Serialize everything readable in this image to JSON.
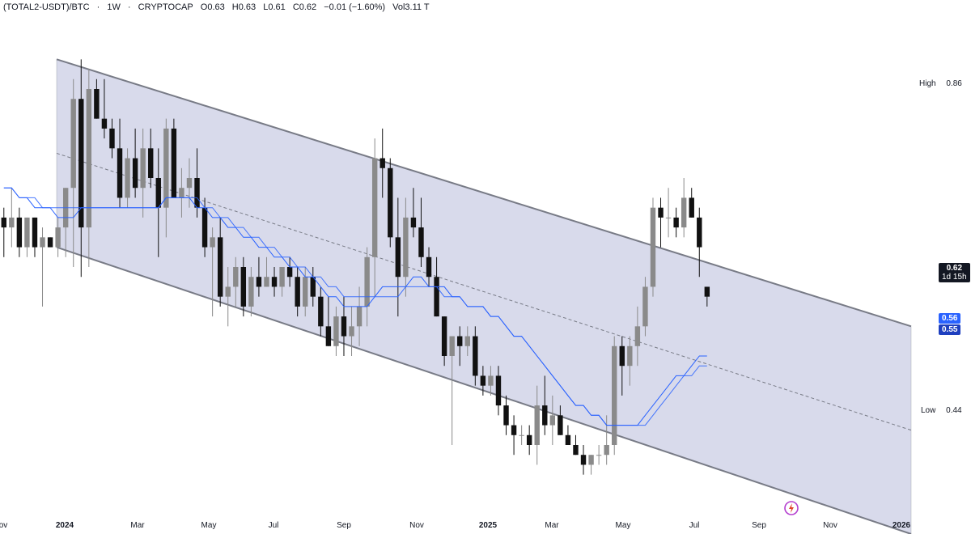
{
  "header": {
    "symbol": "(TOTAL2-USDT)/BTC",
    "sep1": "·",
    "interval": "1W",
    "sep2": "·",
    "source": "CRYPTOCAP",
    "open": "O0.63",
    "high": "H0.63",
    "low": "L0.61",
    "close": "C0.62",
    "change": "−0.01 (−1.60%)",
    "volume": "Vol3.11 T"
  },
  "price_labels": {
    "high_label": "High",
    "high_value": "0.86",
    "low_label": "Low",
    "low_value": "0.44",
    "last_price": "0.62",
    "countdown": "1d 15h",
    "ma_fast": "0.56",
    "ma_slow": "0.55"
  },
  "colors": {
    "channel_fill": "#d1d4e8",
    "channel_line": "#787b86",
    "up_candle": "#8a8a8a",
    "down_candle": "#111111",
    "ma": "#2962ff",
    "ma_badge": "#2962ff",
    "last_badge": "#131722"
  },
  "icons": {
    "logo": "lightning-logo-icon"
  },
  "chart_data": {
    "type": "candlestick",
    "title": "(TOTAL2-USDT)/BTC · 1W · CRYPTOCAP",
    "x_ticks": [
      "2024",
      "Mar",
      "May",
      "Jul",
      "Sep",
      "Nov",
      "2025",
      "Mar",
      "May",
      "Jul",
      "Sep",
      "Nov",
      "2026"
    ],
    "y_range": [
      0.38,
      0.92
    ],
    "y_scale": "linear",
    "grid": false,
    "high": 0.86,
    "low": 0.44,
    "last": 0.62,
    "candles": [
      [
        0.7,
        0.71,
        0.66,
        0.69
      ],
      [
        0.69,
        0.73,
        0.67,
        0.7
      ],
      [
        0.7,
        0.71,
        0.66,
        0.67
      ],
      [
        0.67,
        0.7,
        0.66,
        0.7
      ],
      [
        0.7,
        0.7,
        0.66,
        0.67
      ],
      [
        0.67,
        0.69,
        0.61,
        0.68
      ],
      [
        0.68,
        0.68,
        0.67,
        0.67
      ],
      [
        0.67,
        0.7,
        0.66,
        0.69
      ],
      [
        0.69,
        0.73,
        0.66,
        0.73
      ],
      [
        0.73,
        0.84,
        0.65,
        0.82
      ],
      [
        0.82,
        0.86,
        0.64,
        0.69
      ],
      [
        0.69,
        0.85,
        0.65,
        0.83
      ],
      [
        0.83,
        0.84,
        0.8,
        0.8
      ],
      [
        0.8,
        0.84,
        0.78,
        0.79
      ],
      [
        0.79,
        0.8,
        0.76,
        0.77
      ],
      [
        0.77,
        0.8,
        0.71,
        0.72
      ],
      [
        0.72,
        0.77,
        0.71,
        0.76
      ],
      [
        0.76,
        0.79,
        0.72,
        0.73
      ],
      [
        0.73,
        0.79,
        0.7,
        0.77
      ],
      [
        0.77,
        0.79,
        0.73,
        0.74
      ],
      [
        0.74,
        0.77,
        0.66,
        0.71
      ],
      [
        0.71,
        0.8,
        0.68,
        0.79
      ],
      [
        0.79,
        0.8,
        0.72,
        0.72
      ],
      [
        0.72,
        0.75,
        0.7,
        0.73
      ],
      [
        0.73,
        0.76,
        0.71,
        0.74
      ],
      [
        0.74,
        0.77,
        0.7,
        0.71
      ],
      [
        0.71,
        0.72,
        0.66,
        0.67
      ],
      [
        0.67,
        0.69,
        0.6,
        0.68
      ],
      [
        0.68,
        0.7,
        0.61,
        0.62
      ],
      [
        0.62,
        0.65,
        0.59,
        0.63
      ],
      [
        0.63,
        0.66,
        0.61,
        0.65
      ],
      [
        0.65,
        0.66,
        0.6,
        0.61
      ],
      [
        0.61,
        0.65,
        0.6,
        0.64
      ],
      [
        0.64,
        0.66,
        0.62,
        0.63
      ],
      [
        0.63,
        0.66,
        0.63,
        0.64
      ],
      [
        0.64,
        0.65,
        0.62,
        0.63
      ],
      [
        0.63,
        0.65,
        0.62,
        0.65
      ],
      [
        0.65,
        0.66,
        0.63,
        0.64
      ],
      [
        0.64,
        0.65,
        0.6,
        0.61
      ],
      [
        0.61,
        0.65,
        0.6,
        0.64
      ],
      [
        0.64,
        0.65,
        0.61,
        0.62
      ],
      [
        0.62,
        0.63,
        0.58,
        0.59
      ],
      [
        0.59,
        0.62,
        0.57,
        0.57
      ],
      [
        0.57,
        0.61,
        0.56,
        0.6
      ],
      [
        0.6,
        0.62,
        0.56,
        0.58
      ],
      [
        0.58,
        0.61,
        0.56,
        0.59
      ],
      [
        0.59,
        0.63,
        0.57,
        0.61
      ],
      [
        0.61,
        0.67,
        0.59,
        0.66
      ],
      [
        0.66,
        0.78,
        0.62,
        0.76
      ],
      [
        0.76,
        0.79,
        0.72,
        0.75
      ],
      [
        0.75,
        0.76,
        0.67,
        0.68
      ],
      [
        0.68,
        0.72,
        0.6,
        0.64
      ],
      [
        0.64,
        0.72,
        0.62,
        0.7
      ],
      [
        0.7,
        0.73,
        0.68,
        0.69
      ],
      [
        0.69,
        0.72,
        0.65,
        0.66
      ],
      [
        0.66,
        0.67,
        0.63,
        0.64
      ],
      [
        0.64,
        0.66,
        0.6,
        0.6
      ],
      [
        0.6,
        0.6,
        0.55,
        0.56
      ],
      [
        0.56,
        0.58,
        0.47,
        0.58
      ],
      [
        0.58,
        0.59,
        0.55,
        0.57
      ],
      [
        0.57,
        0.59,
        0.56,
        0.58
      ],
      [
        0.58,
        0.59,
        0.53,
        0.54
      ],
      [
        0.54,
        0.55,
        0.52,
        0.53
      ],
      [
        0.53,
        0.55,
        0.52,
        0.54
      ],
      [
        0.54,
        0.55,
        0.5,
        0.51
      ],
      [
        0.51,
        0.52,
        0.48,
        0.49
      ],
      [
        0.49,
        0.5,
        0.46,
        0.48
      ],
      [
        0.48,
        0.49,
        0.47,
        0.48
      ],
      [
        0.48,
        0.49,
        0.46,
        0.47
      ],
      [
        0.47,
        0.53,
        0.45,
        0.51
      ],
      [
        0.51,
        0.54,
        0.48,
        0.49
      ],
      [
        0.49,
        0.52,
        0.47,
        0.5
      ],
      [
        0.5,
        0.51,
        0.48,
        0.48
      ],
      [
        0.48,
        0.49,
        0.47,
        0.47
      ],
      [
        0.47,
        0.48,
        0.46,
        0.46
      ],
      [
        0.46,
        0.47,
        0.44,
        0.45
      ],
      [
        0.45,
        0.46,
        0.44,
        0.46
      ],
      [
        0.46,
        0.47,
        0.45,
        0.46
      ],
      [
        0.46,
        0.5,
        0.45,
        0.47
      ],
      [
        0.47,
        0.58,
        0.46,
        0.57
      ],
      [
        0.57,
        0.58,
        0.52,
        0.55
      ],
      [
        0.55,
        0.58,
        0.53,
        0.57
      ],
      [
        0.57,
        0.61,
        0.55,
        0.59
      ],
      [
        0.59,
        0.64,
        0.58,
        0.63
      ],
      [
        0.63,
        0.72,
        0.62,
        0.71
      ],
      [
        0.71,
        0.72,
        0.67,
        0.7
      ],
      [
        0.7,
        0.73,
        0.68,
        0.7
      ],
      [
        0.7,
        0.71,
        0.68,
        0.69
      ],
      [
        0.69,
        0.74,
        0.68,
        0.72
      ],
      [
        0.72,
        0.73,
        0.7,
        0.7
      ],
      [
        0.7,
        0.71,
        0.64,
        0.67
      ],
      [
        0.63,
        0.63,
        0.61,
        0.62
      ]
    ],
    "ma_series": [
      {
        "values": [
          0.73,
          0.73,
          0.72,
          0.72,
          0.71,
          0.71,
          0.71,
          0.7,
          0.7,
          0.7,
          0.71,
          0.71,
          0.71,
          0.71,
          0.71,
          0.71,
          0.71,
          0.71,
          0.71,
          0.71,
          0.71,
          0.72,
          0.72,
          0.72,
          0.72,
          0.71,
          0.71,
          0.7,
          0.7,
          0.69,
          0.69,
          0.68,
          0.68,
          0.67,
          0.67,
          0.66,
          0.66,
          0.65,
          0.65,
          0.64,
          0.64,
          0.63,
          0.62,
          0.62,
          0.61,
          0.61,
          0.61,
          0.61,
          0.62,
          0.63,
          0.63,
          0.63,
          0.63,
          0.64,
          0.64,
          0.63,
          0.63,
          0.63,
          0.62,
          0.62,
          0.61,
          0.61,
          0.61,
          0.6,
          0.6,
          0.59,
          0.58,
          0.58,
          0.57,
          0.56,
          0.55,
          0.54,
          0.53,
          0.52,
          0.51,
          0.51,
          0.5,
          0.5,
          0.49,
          0.49,
          0.49,
          0.49,
          0.49,
          0.5,
          0.51,
          0.52,
          0.53,
          0.54,
          0.54,
          0.55,
          0.56,
          0.56
        ]
      },
      {
        "values": [
          0.73,
          0.73,
          0.72,
          0.72,
          0.72,
          0.71,
          0.71,
          0.71,
          0.71,
          0.71,
          0.71,
          0.71,
          0.71,
          0.71,
          0.71,
          0.71,
          0.71,
          0.71,
          0.71,
          0.71,
          0.71,
          0.72,
          0.72,
          0.72,
          0.72,
          0.72,
          0.71,
          0.71,
          0.7,
          0.7,
          0.69,
          0.69,
          0.68,
          0.68,
          0.67,
          0.67,
          0.66,
          0.66,
          0.65,
          0.65,
          0.64,
          0.64,
          0.63,
          0.63,
          0.62,
          0.62,
          0.62,
          0.62,
          0.62,
          0.62,
          0.62,
          0.62,
          0.63,
          0.63,
          0.63,
          0.63,
          0.63,
          0.62,
          0.62,
          0.62,
          0.61,
          0.61,
          0.61,
          0.6,
          0.6,
          0.59,
          0.58,
          0.58,
          0.57,
          0.56,
          0.55,
          0.54,
          0.53,
          0.52,
          0.51,
          0.51,
          0.5,
          0.5,
          0.49,
          0.49,
          0.49,
          0.49,
          0.49,
          0.49,
          0.5,
          0.51,
          0.52,
          0.53,
          0.54,
          0.54,
          0.55,
          0.55
        ]
      }
    ],
    "channel": {
      "upper_start": [
        0,
        0.86
      ],
      "upper_end": [
        118,
        0.59
      ],
      "lower_start": [
        0,
        0.67
      ],
      "lower_end": [
        118,
        0.38
      ]
    }
  }
}
